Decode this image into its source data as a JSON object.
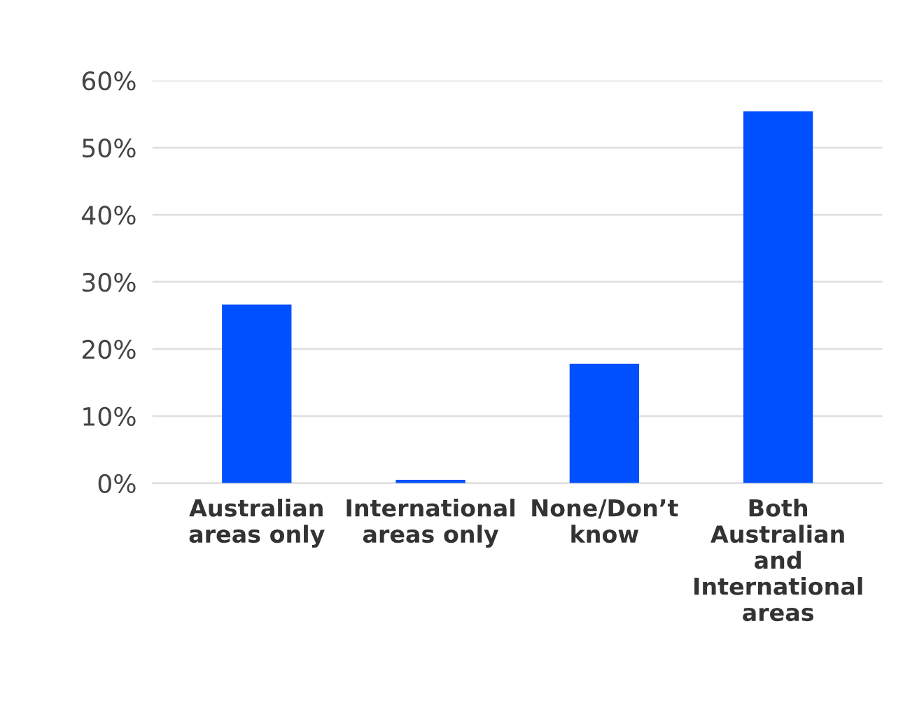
{
  "chart_data": {
    "type": "bar",
    "categories": [
      "Australian\nareas only",
      "International\nareas only",
      "None/Don’t\nknow",
      "Both\nAustralian\nand\nInternational\nareas"
    ],
    "values": [
      26.6,
      0.5,
      17.8,
      55.4
    ],
    "color": "#0050ff",
    "ylim": [
      0,
      60
    ],
    "yticks": [
      {
        "value": 0,
        "label": "0%"
      },
      {
        "value": 10,
        "label": "10%"
      },
      {
        "value": 20,
        "label": "20%"
      },
      {
        "value": 30,
        "label": "30%"
      },
      {
        "value": 40,
        "label": "40%"
      },
      {
        "value": 50,
        "label": "50%"
      },
      {
        "value": 60,
        "label": "60%"
      }
    ],
    "grid": "y"
  }
}
